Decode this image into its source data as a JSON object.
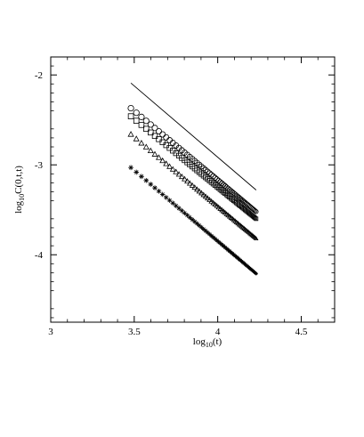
{
  "chart_data": {
    "type": "scatter",
    "xlabel": "log",
    "xlabel_sub": "10",
    "xlabel_tail": "(t)",
    "ylabel": "log",
    "ylabel_sub": "10",
    "ylabel_tail": "C(0,t,t)",
    "xlim": [
      3,
      4.7
    ],
    "ylim": [
      -4.75,
      -1.8
    ],
    "x_ticks": [
      3,
      3.5,
      4,
      4.5
    ],
    "x_tick_labels": [
      "3",
      "3.5",
      "4",
      "4.5"
    ],
    "y_ticks": [
      -2,
      -3,
      -4
    ],
    "y_tick_labels": [
      "-2",
      "-3",
      "-4"
    ],
    "grid": false,
    "reference_line": {
      "x": [
        3.48,
        4.23
      ],
      "y": [
        -2.09,
        -3.28
      ]
    },
    "series": [
      {
        "marker": "circle",
        "x_start": 3.48,
        "x_end": 4.23,
        "y_start": -2.37,
        "y_end": -3.52
      },
      {
        "marker": "square",
        "x_start": 3.48,
        "x_end": 4.23,
        "y_start": -2.46,
        "y_end": -3.6
      },
      {
        "marker": "triangle",
        "x_start": 3.48,
        "x_end": 4.23,
        "y_start": -2.66,
        "y_end": -3.82
      },
      {
        "marker": "star",
        "x_start": 3.48,
        "x_end": 4.23,
        "y_start": -3.03,
        "y_end": -4.21
      }
    ]
  }
}
